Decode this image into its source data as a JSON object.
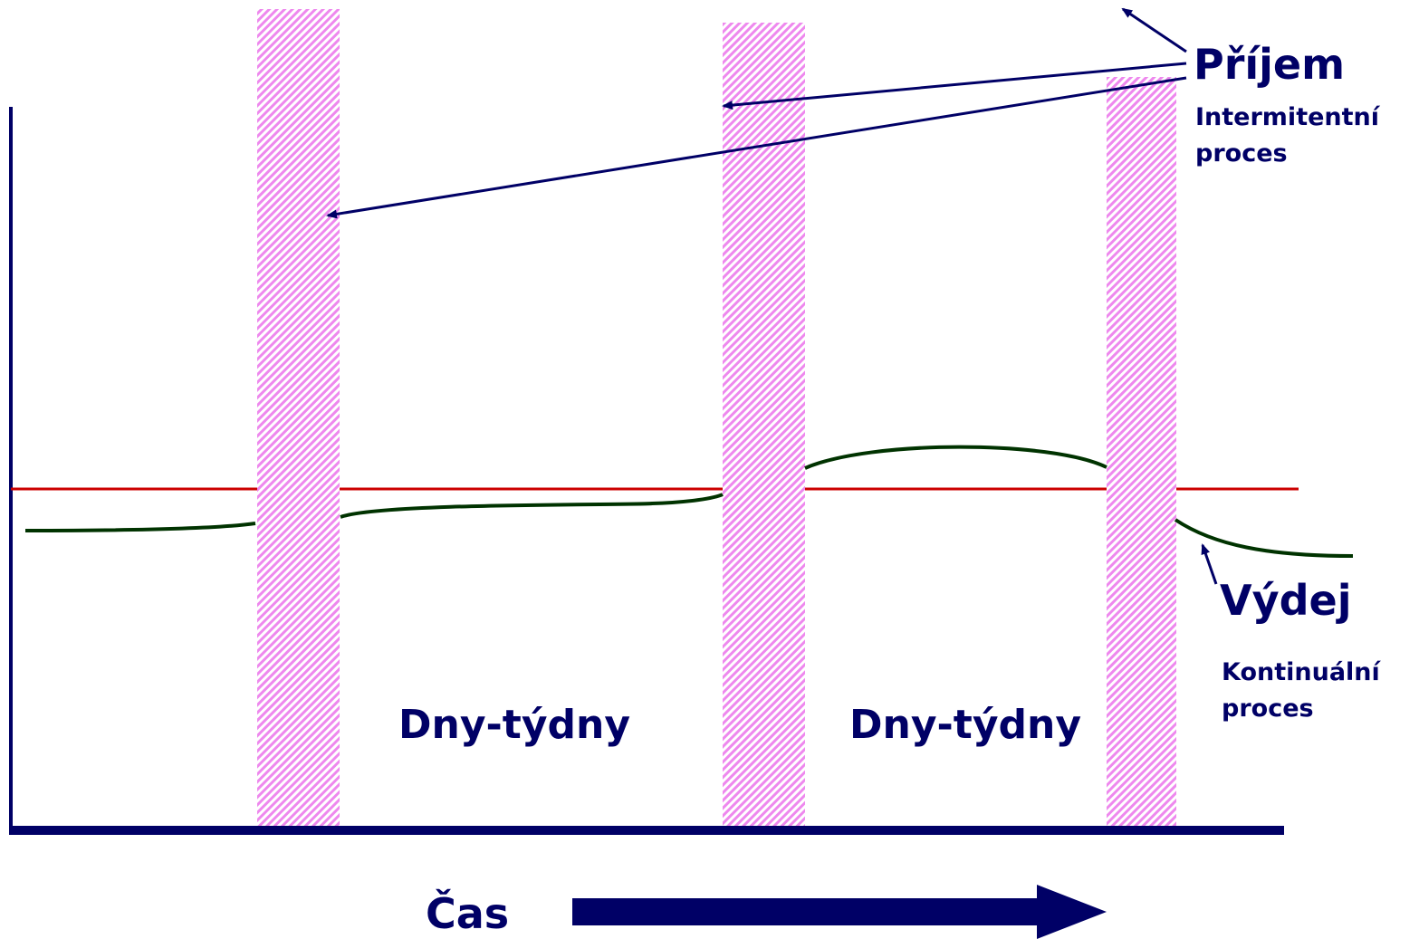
{
  "colors": {
    "navy": "#000066",
    "red_line": "#cc0000",
    "green_curve": "#003300",
    "hatch_pink": "#ee88ee"
  },
  "labels": {
    "intake_title": "Příjem",
    "intake_subtitle_line1": "Intermitentní",
    "intake_subtitle_line2": "proces",
    "output_title": "Výdej",
    "output_subtitle_line1": "Kontinuální",
    "output_subtitle_line2": "proces",
    "interval_1": "Dny-týdny",
    "interval_2": "Dny-týdny",
    "time_axis": "Čas"
  }
}
